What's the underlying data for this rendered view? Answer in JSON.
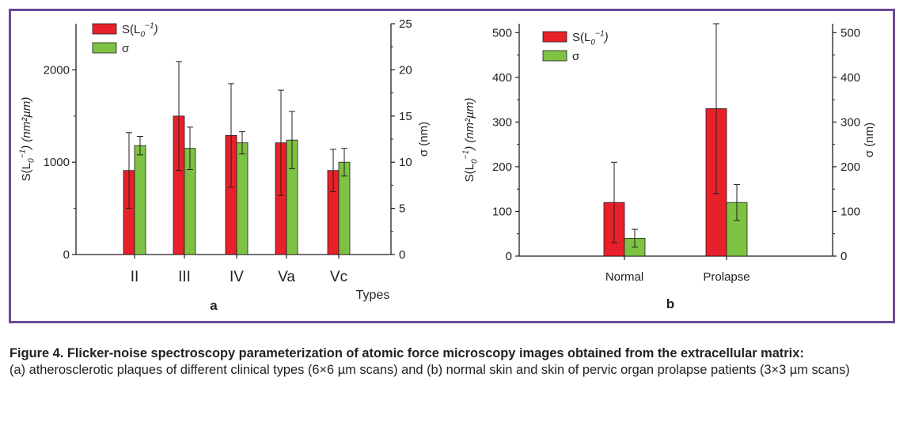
{
  "colors": {
    "frame": "#6a4a94",
    "s_bar": "#e8202a",
    "sigma_bar": "#7dc242",
    "axis": "#231f20"
  },
  "chart_data": [
    {
      "type": "bar",
      "panel_label": "a",
      "categories": [
        "II",
        "III",
        "IV",
        "Va",
        "Vc"
      ],
      "xlabel": "Types",
      "ylabel": {
        "base": "S(L",
        "sub": "0",
        "sup": "−1",
        "tail": ") (nm²µm)"
      },
      "y2label": "σ (nm)",
      "ylim": [
        0,
        2500
      ],
      "y2lim": [
        0,
        25
      ],
      "yticks": [
        0,
        1000,
        2000
      ],
      "y2ticks": [
        0,
        5,
        10,
        15,
        20,
        25
      ],
      "legend": {
        "position": "top-left",
        "entries": [
          {
            "base": "S(L",
            "sub": "0",
            "sup": "−1",
            "tail": ")"
          },
          {
            "base": "σ",
            "sub": "",
            "sup": "",
            "tail": ""
          }
        ]
      },
      "series": [
        {
          "axis": "left",
          "values": [
            910,
            1500,
            1290,
            1210,
            910
          ],
          "errors": [
            410,
            590,
            560,
            570,
            230
          ]
        },
        {
          "axis": "right",
          "values": [
            11.8,
            11.5,
            12.1,
            12.4,
            10.0
          ],
          "errors": [
            1.0,
            2.3,
            1.2,
            3.1,
            1.5
          ]
        }
      ]
    },
    {
      "type": "bar",
      "panel_label": "b",
      "categories": [
        "Normal",
        "Prolapse"
      ],
      "xlabel": "",
      "ylabel": {
        "base": "S(L",
        "sub": "0",
        "sup": "−1",
        "tail": ") (nm²µm)"
      },
      "y2label": "σ (nm)",
      "ylim": [
        0,
        520
      ],
      "y2lim": [
        0,
        520
      ],
      "yticks": [
        0,
        100,
        200,
        300,
        400,
        500
      ],
      "y2ticks": [
        0,
        100,
        200,
        300,
        400,
        500
      ],
      "legend": {
        "position": "top-left",
        "entries": [
          {
            "base": "S(L",
            "sub": "0",
            "sup": "−1",
            "tail": ")"
          },
          {
            "base": "σ",
            "sub": "",
            "sup": "",
            "tail": ""
          }
        ]
      },
      "series": [
        {
          "axis": "left",
          "values": [
            120,
            330
          ],
          "errors": [
            90,
            190
          ]
        },
        {
          "axis": "right",
          "values": [
            40,
            120
          ],
          "errors": [
            20,
            40
          ]
        }
      ]
    }
  ],
  "caption": {
    "title": "Figure 4. Flicker-noise spectroscopy parameterization of atomic force microscopy images obtained from the extracellular matrix:",
    "body": "(a) atherosclerotic plaques of different clinical types (6×6 µm scans) and (b) normal skin and skin of pervic organ prolapse patients (3×3 µm scans)"
  }
}
